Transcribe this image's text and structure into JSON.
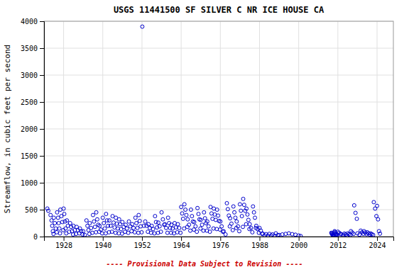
{
  "chart_data": {
    "type": "scatter",
    "title": "USGS 11441500 SF SILVER C NR ICE HOUSE CA",
    "y_label": "Streamflow, in cubic feet per second",
    "annotation": "---- Provisional Data Subject to Revision ----",
    "xlim": [
      1922,
      2029
    ],
    "ylim": [
      0,
      4000
    ],
    "xticks": [
      1928,
      1940,
      1952,
      1964,
      1976,
      1988,
      2000,
      2012,
      2024
    ],
    "yticks": [
      0,
      500,
      1000,
      1500,
      2000,
      2500,
      3000,
      3500,
      4000
    ],
    "grid": true,
    "color": "#0000cc",
    "marker": "circle",
    "x": [
      1923.0,
      1923.3,
      1924.0,
      1924.3,
      1924.5,
      1924.7,
      1924.9,
      1925.0,
      1925.3,
      1925.6,
      1925.9,
      1926.0,
      1926.3,
      1926.5,
      1926.7,
      1926.9,
      1927.0,
      1927.3,
      1927.6,
      1927.9,
      1928.0,
      1928.2,
      1928.4,
      1928.6,
      1928.8,
      1929.0,
      1929.3,
      1929.7,
      1930.0,
      1930.3,
      1930.6,
      1930.9,
      1931.0,
      1931.4,
      1931.8,
      1932.0,
      1932.4,
      1932.8,
      1933.0,
      1933.4,
      1933.8,
      1934.0,
      1934.5,
      1935.0,
      1935.3,
      1935.6,
      1935.9,
      1936.0,
      1936.4,
      1936.8,
      1937.0,
      1937.3,
      1937.6,
      1937.9,
      1938.0,
      1938.3,
      1938.6,
      1938.9,
      1939.0,
      1939.4,
      1939.8,
      1940.0,
      1940.3,
      1940.6,
      1940.9,
      1941.0,
      1941.3,
      1941.6,
      1941.9,
      1942.0,
      1942.4,
      1942.8,
      1943.0,
      1943.3,
      1943.6,
      1943.9,
      1944.0,
      1944.3,
      1944.6,
      1944.9,
      1945.0,
      1945.3,
      1945.6,
      1945.9,
      1946.0,
      1946.4,
      1946.8,
      1947.0,
      1947.4,
      1947.8,
      1948.0,
      1948.4,
      1948.8,
      1949.0,
      1949.4,
      1949.8,
      1950.0,
      1950.3,
      1950.6,
      1950.9,
      1951.0,
      1951.3,
      1951.6,
      1951.9,
      1952.1,
      1952.6,
      1953.0,
      1953.4,
      1953.8,
      1954.0,
      1954.4,
      1954.8,
      1955.0,
      1955.4,
      1955.8,
      1956.0,
      1956.3,
      1956.6,
      1956.9,
      1957.0,
      1957.4,
      1957.8,
      1958.0,
      1958.4,
      1958.8,
      1959.0,
      1959.4,
      1959.8,
      1960.0,
      1960.3,
      1960.6,
      1960.9,
      1961.0,
      1961.4,
      1961.8,
      1962.0,
      1962.4,
      1962.8,
      1963.0,
      1963.4,
      1963.8,
      1964.0,
      1964.3,
      1964.6,
      1964.9,
      1965.0,
      1965.3,
      1965.6,
      1965.9,
      1966.0,
      1966.4,
      1966.8,
      1967.0,
      1967.3,
      1967.6,
      1967.9,
      1968.0,
      1968.4,
      1968.8,
      1969.0,
      1969.3,
      1969.6,
      1969.9,
      1970.0,
      1970.4,
      1970.8,
      1971.0,
      1971.3,
      1971.6,
      1971.9,
      1972.0,
      1972.4,
      1972.8,
      1973.0,
      1973.3,
      1973.6,
      1973.9,
      1974.0,
      1974.3,
      1974.6,
      1974.9,
      1975.0,
      1975.3,
      1975.6,
      1975.9,
      1976.0,
      1976.4,
      1976.8,
      1977.0,
      1977.6,
      1978.0,
      1978.3,
      1978.6,
      1978.9,
      1979.0,
      1979.4,
      1979.8,
      1980.0,
      1980.3,
      1980.6,
      1980.9,
      1981.0,
      1981.4,
      1981.8,
      1982.0,
      1982.3,
      1982.6,
      1982.9,
      1983.0,
      1983.3,
      1983.6,
      1983.9,
      1984.0,
      1984.3,
      1984.6,
      1984.9,
      1985.0,
      1985.4,
      1985.8,
      1986.0,
      1986.3,
      1986.6,
      1986.9,
      1987.0,
      1987.4,
      1987.8,
      1988.0,
      1988.4,
      1988.8,
      1989.0,
      1989.6,
      1990.0,
      1990.6,
      1991.0,
      1991.6,
      1992.0,
      1992.6,
      1993.0,
      1993.6,
      1994.0,
      1995.0,
      1996.0,
      1997.0,
      1998.0,
      1999.0,
      2000.0,
      2000.6,
      2010.0,
      2010.1,
      2010.2,
      2010.3,
      2010.4,
      2010.5,
      2010.6,
      2010.7,
      2010.8,
      2010.9,
      2011.0,
      2011.1,
      2011.2,
      2011.3,
      2011.4,
      2011.5,
      2011.6,
      2011.7,
      2012.0,
      2012.4,
      2012.8,
      2013.0,
      2013.6,
      2014.0,
      2014.4,
      2014.8,
      2015.0,
      2015.4,
      2015.8,
      2016.0,
      2016.4,
      2016.8,
      2017.0,
      2017.4,
      2017.8,
      2018.0,
      2018.6,
      2019.0,
      2019.4,
      2019.8,
      2020.0,
      2020.4,
      2020.8,
      2021.0,
      2021.4,
      2021.8,
      2022.0,
      2022.4,
      2022.8,
      2023.0,
      2023.4,
      2023.8,
      2024.0,
      2024.3,
      2024.6,
      2024.9
    ],
    "values": [
      520,
      480,
      400,
      300,
      200,
      100,
      50,
      350,
      250,
      150,
      80,
      450,
      350,
      250,
      150,
      60,
      500,
      380,
      270,
      120,
      520,
      420,
      280,
      150,
      60,
      300,
      200,
      90,
      250,
      180,
      100,
      40,
      200,
      120,
      50,
      180,
      120,
      60,
      150,
      100,
      40,
      100,
      30,
      300,
      200,
      120,
      50,
      250,
      160,
      70,
      400,
      280,
      180,
      80,
      450,
      320,
      220,
      90,
      200,
      130,
      60,
      350,
      250,
      150,
      60,
      420,
      300,
      200,
      80,
      300,
      200,
      90,
      380,
      260,
      170,
      70,
      350,
      240,
      150,
      60,
      320,
      230,
      140,
      55,
      270,
      180,
      90,
      220,
      150,
      70,
      280,
      190,
      100,
      230,
      160,
      80,
      350,
      250,
      160,
      70,
      400,
      290,
      190,
      80,
      3900,
      200,
      280,
      200,
      90,
      230,
      160,
      70,
      200,
      140,
      60,
      380,
      270,
      170,
      70,
      260,
      190,
      90,
      450,
      320,
      220,
      230,
      160,
      70,
      350,
      250,
      160,
      70,
      220,
      150,
      60,
      250,
      170,
      80,
      230,
      160,
      70,
      550,
      430,
      330,
      150,
      600,
      500,
      400,
      180,
      320,
      220,
      110,
      500,
      380,
      280,
      130,
      270,
      190,
      90,
      530,
      420,
      320,
      150,
      310,
      220,
      110,
      450,
      340,
      250,
      110,
      280,
      190,
      90,
      550,
      430,
      330,
      150,
      520,
      410,
      310,
      140,
      500,
      390,
      290,
      130,
      280,
      190,
      90,
      100,
      40,
      620,
      510,
      390,
      190,
      340,
      240,
      120,
      560,
      450,
      350,
      160,
      280,
      190,
      100,
      600,
      480,
      380,
      180,
      700,
      590,
      480,
      230,
      520,
      410,
      310,
      140,
      230,
      160,
      80,
      560,
      450,
      350,
      160,
      200,
      140,
      70,
      160,
      110,
      50,
      55,
      20,
      45,
      15,
      50,
      20,
      40,
      15,
      60,
      25,
      30,
      40,
      50,
      60,
      45,
      35,
      20,
      10,
      70,
      60,
      50,
      40,
      30,
      25,
      20,
      15,
      10,
      8,
      100,
      85,
      70,
      55,
      45,
      35,
      25,
      15,
      90,
      70,
      50,
      45,
      30,
      55,
      40,
      25,
      60,
      45,
      30,
      100,
      75,
      50,
      580,
      440,
      330,
      60,
      35,
      110,
      80,
      50,
      100,
      75,
      45,
      80,
      60,
      35,
      60,
      45,
      30,
      640,
      520,
      380,
      570,
      320,
      100,
      55
    ]
  }
}
